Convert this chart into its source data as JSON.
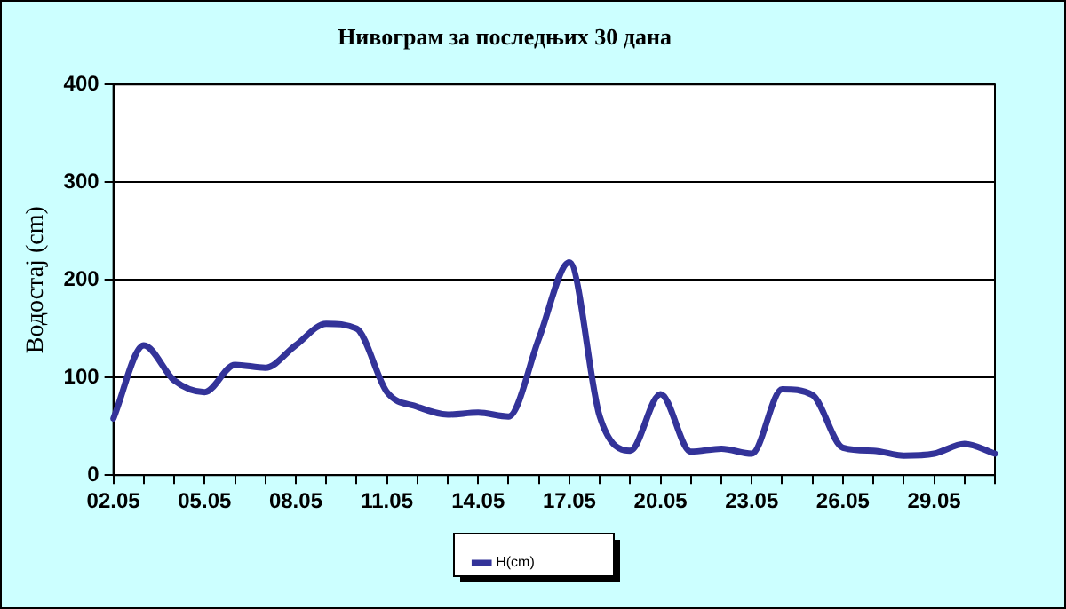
{
  "chart_data": {
    "type": "line",
    "title": "Нивограм за последњих 30 дана",
    "ylabel": "Водостај (cm)",
    "categories": [
      "02.05",
      null,
      null,
      "05.05",
      null,
      null,
      "08.05",
      null,
      null,
      "11.05",
      null,
      null,
      "14.05",
      null,
      null,
      "17.05",
      null,
      null,
      "20.05",
      null,
      null,
      "23.05",
      null,
      null,
      "26.05",
      null,
      null,
      "29.05",
      null,
      null
    ],
    "series": [
      {
        "name": "H(cm)",
        "color": "#333399",
        "values": [
          58,
          133,
          97,
          85,
          113,
          110,
          133,
          155,
          150,
          85,
          70,
          62,
          64,
          60,
          140,
          218,
          60,
          25,
          83,
          24,
          27,
          22,
          88,
          82,
          28,
          25,
          20,
          22,
          32,
          22
        ]
      }
    ],
    "ylim": [
      0,
      400
    ],
    "yticks": [
      0,
      100,
      200,
      300,
      400
    ],
    "grid": "y",
    "legend": "bottom",
    "marker": "none",
    "line_style": "solid"
  }
}
